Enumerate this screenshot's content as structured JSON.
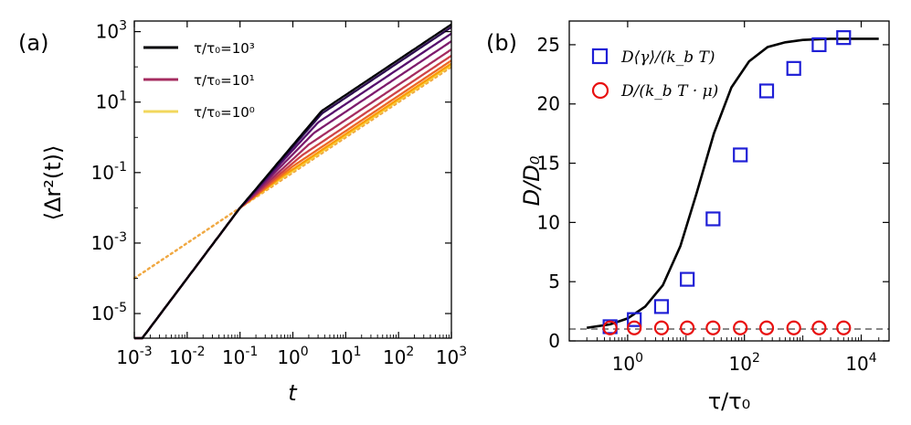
{
  "figure": {
    "panel_a_label": "(a)",
    "panel_b_label": "(b)"
  },
  "chart_data": [
    {
      "type": "line",
      "panel": "(a)",
      "xlabel": "t",
      "ylabel": "⟨Δr²(t)⟩",
      "xscale": "log",
      "yscale": "log",
      "xlim": [
        0.001,
        1000
      ],
      "ylim": [
        2e-06,
        2000
      ],
      "x_ticks": [
        0.001,
        0.01,
        0.1,
        1,
        10,
        100,
        1000
      ],
      "x_tick_labels": [
        "10^-3",
        "10^-2",
        "10^-1",
        "10^0",
        "10^1",
        "10^2",
        "10^3"
      ],
      "y_ticks": [
        1e-05,
        0.001,
        0.1,
        10,
        1000
      ],
      "y_tick_labels": [
        "10^-5",
        "10^-3",
        "10^-1",
        "10^1",
        "10^3"
      ],
      "legend": [
        {
          "label": "τ/τ₀=10³",
          "color": "#000004"
        },
        {
          "label": "τ/τ₀=10¹",
          "color": "#a52c60"
        },
        {
          "label": "τ/τ₀=10⁰",
          "color": "#f2d75c"
        }
      ],
      "legend_position": "top-left",
      "common_ballistic": {
        "coef": 1.0,
        "exponent": 2,
        "crossover_t": 0.1,
        "value_at_crossover": 0.01
      },
      "series": [
        {
          "name": "c1",
          "color": "#000004",
          "slope_mid": 1.78,
          "tc": 3.5,
          "slope_late": 1.0
        },
        {
          "name": "c2",
          "color": "#2b0b4f",
          "slope_mid": 1.73,
          "tc": 3.5,
          "slope_late": 1.0
        },
        {
          "name": "c3",
          "color": "#56106e",
          "slope_mid": 1.64,
          "tc": 3.0,
          "slope_late": 1.0
        },
        {
          "name": "c4",
          "color": "#7d1c6d",
          "slope_mid": 1.52,
          "tc": 2.5,
          "slope_late": 1.0
        },
        {
          "name": "c5",
          "color": "#a52c60",
          "slope_mid": 1.38,
          "tc": 2.0,
          "slope_late": 1.0
        },
        {
          "name": "c6",
          "color": "#cf4446",
          "slope_mid": 1.27,
          "tc": 1.5,
          "slope_late": 1.0
        },
        {
          "name": "c7",
          "color": "#ed6925",
          "slope_mid": 1.18,
          "tc": 1.0,
          "slope_late": 1.0
        },
        {
          "name": "c8",
          "color": "#fb9b06",
          "slope_mid": 1.12,
          "tc": 0.6,
          "slope_late": 1.0
        },
        {
          "name": "c9",
          "color": "#f7d13d",
          "slope_mid": 1.08,
          "tc": 0.4,
          "slope_late": 1.0
        }
      ],
      "dotted_asymptote": {
        "color": "#f0a842",
        "coef": 0.1,
        "exponent": 1,
        "x_range": [
          0.001,
          1000
        ]
      }
    },
    {
      "type": "scatter",
      "panel": "(b)",
      "xlabel": "τ/τ₀",
      "ylabel": "D/D₀",
      "xscale": "log",
      "yscale": "linear",
      "xlim": [
        0.1,
        30000
      ],
      "ylim": [
        0,
        27
      ],
      "x_ticks": [
        1,
        100,
        10000
      ],
      "x_tick_labels": [
        "10^0",
        "10^2",
        "10^4"
      ],
      "y_ticks": [
        0,
        5,
        10,
        15,
        20,
        25
      ],
      "y_tick_labels": [
        "0",
        "5",
        "10",
        "15",
        "20",
        "25"
      ],
      "legend": [
        {
          "label": "D⟨γ⟩/(k_b T)",
          "marker": "square",
          "color": "#1f1fd6"
        },
        {
          "label": "D/(k_b T · μ)",
          "marker": "circle",
          "color": "#e81010"
        }
      ],
      "legend_position": "top-left",
      "series": [
        {
          "name": "D⟨γ⟩/(k_b T)",
          "marker": "square",
          "color": "#1f1fd6",
          "x": [
            0.5,
            1.3,
            3.8,
            10.5,
            29,
            85,
            240,
            700,
            1900,
            5000
          ],
          "y": [
            1.2,
            1.8,
            2.9,
            5.2,
            10.3,
            15.7,
            21.1,
            23.0,
            25.0,
            25.6
          ]
        },
        {
          "name": "D/(k_b T · μ)",
          "marker": "circle",
          "color": "#e81010",
          "x": [
            0.5,
            1.3,
            3.8,
            10.5,
            29,
            85,
            240,
            700,
            1900,
            5000
          ],
          "y": [
            1.1,
            1.1,
            1.1,
            1.1,
            1.1,
            1.1,
            1.1,
            1.1,
            1.1,
            1.1
          ]
        },
        {
          "name": "theory",
          "line": "solid",
          "color": "#000000",
          "x": [
            0.2,
            0.5,
            1,
            2,
            4,
            8,
            15,
            30,
            60,
            120,
            250,
            500,
            1000,
            3000,
            20000
          ],
          "y": [
            1.1,
            1.4,
            1.9,
            2.9,
            4.7,
            8.0,
            12.4,
            17.5,
            21.4,
            23.6,
            24.8,
            25.2,
            25.4,
            25.5,
            25.5
          ]
        },
        {
          "name": "baseline",
          "line": "dashed",
          "color": "#8a8a8a",
          "x": [
            0.1,
            30000
          ],
          "y": [
            1.0,
            1.0
          ]
        }
      ]
    }
  ]
}
